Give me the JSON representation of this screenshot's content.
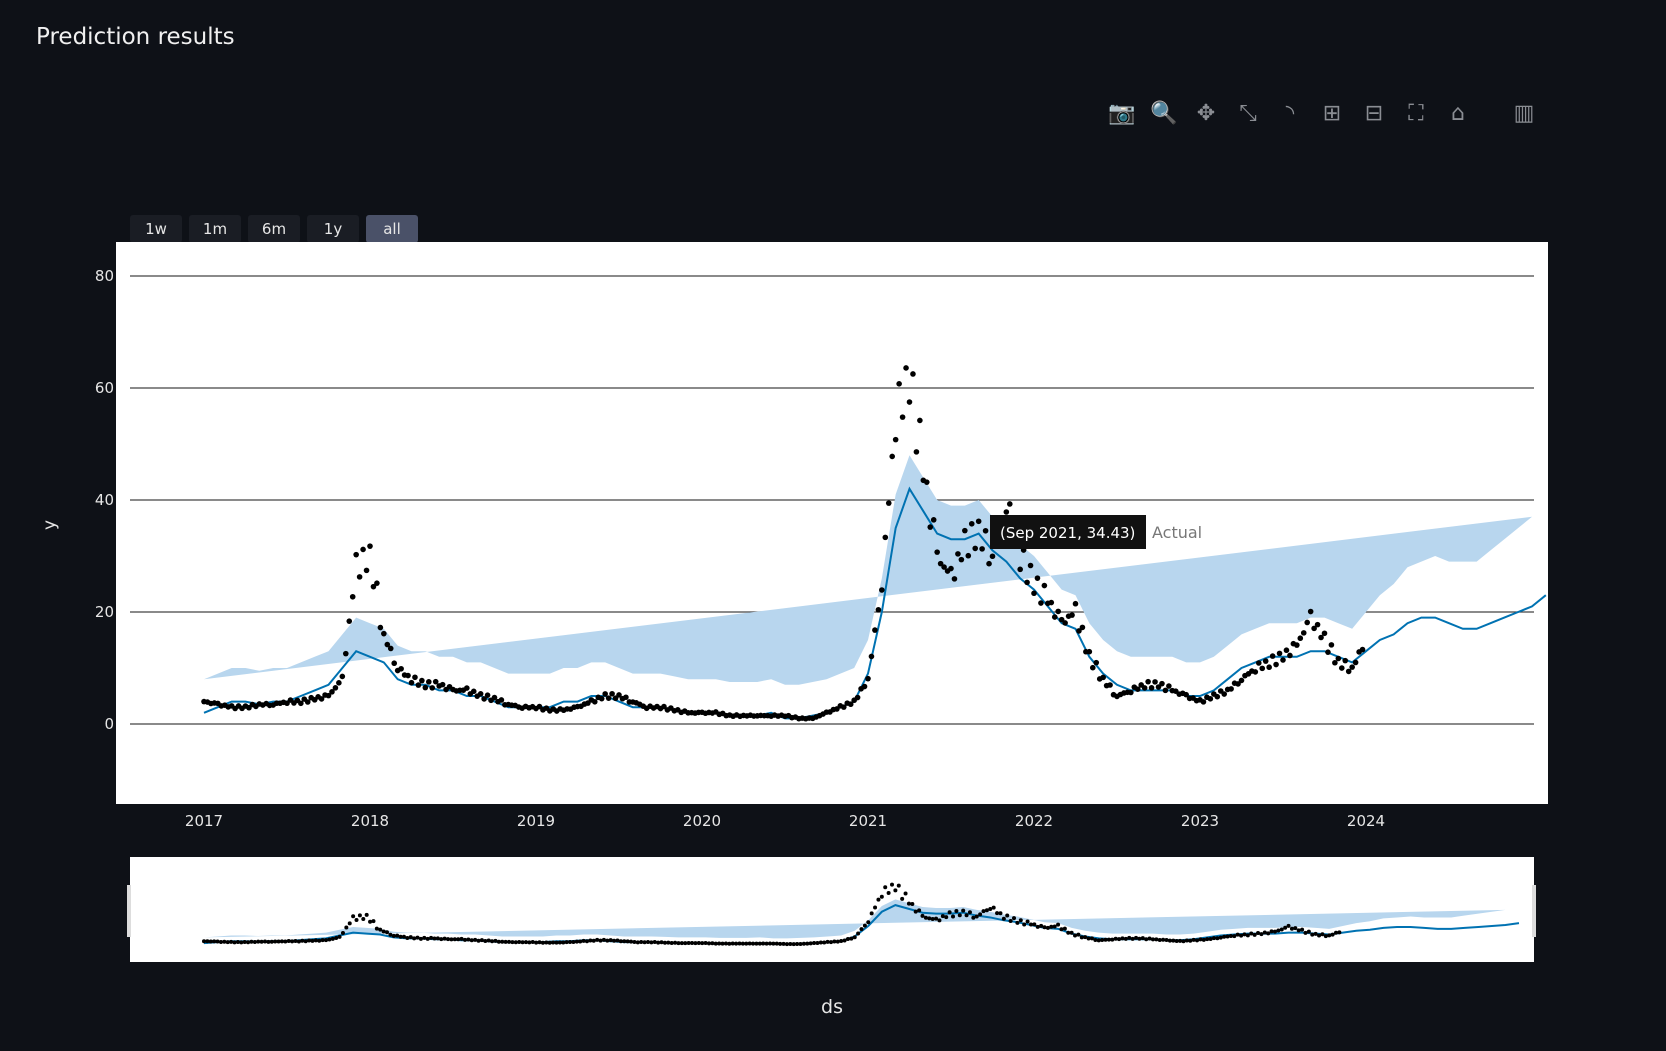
{
  "title": "Prediction results",
  "toolbar": [
    "camera-icon",
    "zoom-icon",
    "pan-icon",
    "expand-icon",
    "lasso-icon",
    "zoom-in-icon",
    "zoom-out-icon",
    "autoscale-icon",
    "reset-axes-icon",
    "plotly-logo-icon"
  ],
  "toolbar_glyphs": [
    "📷",
    "🔍",
    "✥",
    "⤡",
    "◝",
    "⊞",
    "⊟",
    "⛶",
    "⌂",
    "▥"
  ],
  "range_buttons": [
    {
      "label": "1w"
    },
    {
      "label": "1m"
    },
    {
      "label": "6m"
    },
    {
      "label": "1y"
    },
    {
      "label": "all",
      "active": true
    }
  ],
  "tooltip": {
    "text": "(Sep 2021, 34.43)",
    "series": "Actual"
  },
  "colors": {
    "actual": "#000000",
    "forecast": "#0072b2",
    "band": "#b8d6ee",
    "plot_bg": "#ffffff",
    "page_bg": "#0e1117"
  },
  "chart_data": {
    "type": "line",
    "xlabel": "ds",
    "ylabel": "y",
    "xlim": [
      "2016-06",
      "2025-01"
    ],
    "ylim": [
      -14,
      85
    ],
    "xticks": [
      "2017",
      "2018",
      "2019",
      "2020",
      "2021",
      "2022",
      "2023",
      "2024"
    ],
    "yticks": [
      0,
      20,
      40,
      60,
      80
    ],
    "grid": true,
    "start": "2017-01",
    "actual": [
      4,
      3.5,
      3,
      3,
      3.5,
      3.5,
      4,
      4,
      4.5,
      5,
      8,
      28,
      30,
      16,
      10,
      8,
      7,
      7,
      6,
      6,
      5,
      4.5,
      3.5,
      3,
      3,
      2.5,
      2.5,
      3,
      4,
      5,
      5,
      4,
      3,
      3,
      2.5,
      2,
      2,
      2,
      1.5,
      1.5,
      1.5,
      1.5,
      1.5,
      1,
      1,
      2,
      3,
      4,
      8,
      25,
      55,
      62,
      45,
      30,
      26,
      32,
      34.43,
      30,
      40,
      30,
      25,
      22,
      18,
      20,
      12,
      8,
      5,
      6,
      7,
      7,
      6,
      5,
      4,
      5,
      6,
      8,
      10,
      11,
      12,
      14,
      19,
      15,
      11,
      10,
      15
    ],
    "yhat": [
      2,
      3,
      4,
      4,
      3.5,
      4,
      4,
      5,
      6,
      7,
      10,
      13,
      12,
      11,
      8,
      7,
      7,
      6,
      6,
      5,
      5,
      4,
      3,
      3,
      3,
      3,
      4,
      4,
      5,
      5,
      4,
      3,
      3,
      3,
      2.5,
      2,
      2,
      2,
      1.5,
      1.5,
      1.5,
      2,
      1,
      1,
      1.5,
      2,
      3,
      4,
      9,
      20,
      35,
      42,
      38,
      34,
      33,
      33,
      34,
      31,
      29,
      26,
      24,
      21,
      18,
      17,
      12,
      9,
      7,
      6,
      6,
      6,
      6,
      5,
      5,
      6,
      8,
      10,
      11,
      12,
      12,
      12,
      13,
      13,
      12,
      11,
      13,
      15,
      16,
      18,
      19,
      19,
      18,
      17,
      17,
      18,
      19,
      20,
      21,
      23
    ],
    "band_halfwidth": [
      6,
      6,
      6,
      6,
      6,
      6,
      6,
      6,
      6,
      6,
      6,
      6,
      6,
      6,
      6,
      6,
      6,
      6,
      6,
      6,
      6,
      6,
      6,
      6,
      6,
      6,
      6,
      6,
      6,
      6,
      6,
      6,
      6,
      6,
      6,
      6,
      6,
      6,
      6,
      6,
      6,
      6,
      6,
      6,
      6,
      6,
      6,
      6,
      6,
      6,
      6,
      6,
      6,
      6,
      6,
      6,
      6,
      6,
      6,
      6,
      6,
      6,
      6,
      6,
      6,
      6,
      6,
      6,
      6,
      6,
      6,
      6,
      6,
      6,
      6,
      6,
      6,
      6,
      6,
      6,
      6,
      6,
      6,
      6,
      7,
      8,
      9,
      10,
      10,
      11,
      11,
      12,
      12,
      13,
      14,
      15,
      16
    ]
  }
}
